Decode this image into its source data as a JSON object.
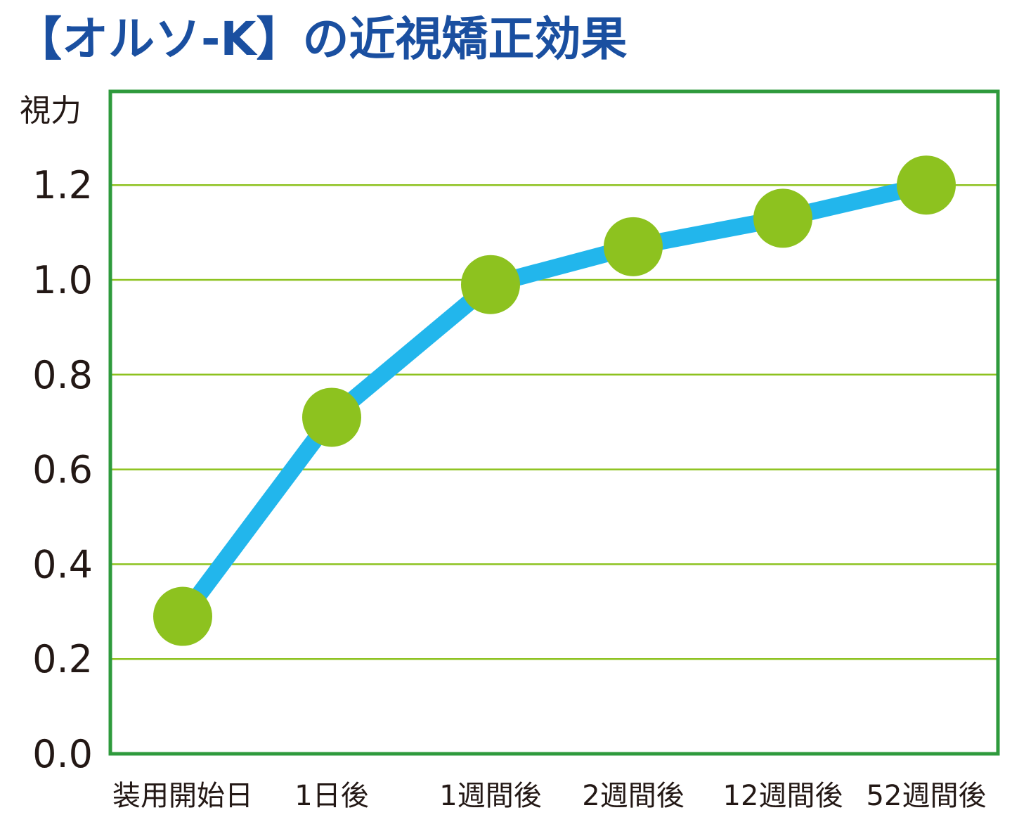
{
  "chart_data": {
    "type": "line",
    "title": "【オルソ-K】の近視矯正効果",
    "ylabel": "視力",
    "xlabel": "",
    "ylim": [
      0,
      1.4
    ],
    "yticks": [
      "0.0",
      "0.2",
      "0.4",
      "0.6",
      "0.8",
      "1.0",
      "1.2"
    ],
    "ytick_values": [
      0.0,
      0.2,
      0.4,
      0.6,
      0.8,
      1.0,
      1.2
    ],
    "categories": [
      "装用開始日",
      "1日後",
      "1週間後",
      "2週間後",
      "12週間後",
      "52週間後"
    ],
    "series": [
      {
        "values": [
          0.29,
          0.71,
          0.99,
          1.07,
          1.13,
          1.2
        ]
      }
    ],
    "grid": true,
    "legend": "none",
    "colors": {
      "title": "#1a4fa0",
      "frame": "#2e9a3c",
      "grid": "#8dc21f",
      "line": "#22b6ec",
      "marker": "#8dc21f",
      "text": "#231815"
    }
  }
}
